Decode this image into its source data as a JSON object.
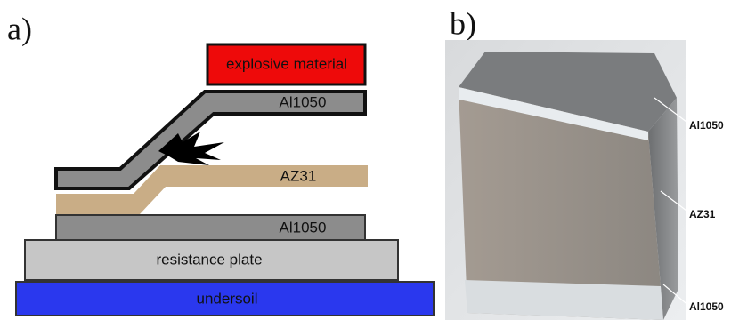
{
  "panels": {
    "a": {
      "label": "a)",
      "layers": {
        "explosive": "explosive material",
        "flyer": "Al1050",
        "interlayer": "AZ31",
        "base": "Al1050",
        "resistance": "resistance plate",
        "undersoil": "undersoil"
      }
    },
    "b": {
      "label": "b)",
      "labels": [
        "Al1050",
        "AZ31",
        "Al1050"
      ]
    }
  }
}
